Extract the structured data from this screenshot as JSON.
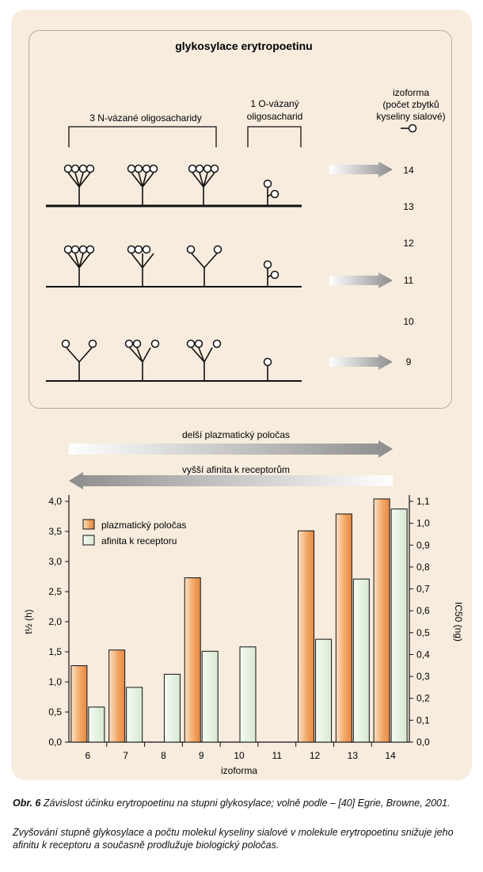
{
  "figure": {
    "title": "glykosylace erytropoetinu",
    "n_label": "3 N-vázané oligosacharidy",
    "o_label_line1": "1 O-vázaný",
    "o_label_line2": "oligosacharid",
    "iso_header_line1": "izoforma",
    "iso_header_line2": "(počet zbytků",
    "iso_header_line3": "kyseliny sialové)",
    "isoform_numbers": [
      "14",
      "13",
      "12",
      "11",
      "10",
      "9"
    ],
    "arrow_half_life": "delší plazmatický poločas",
    "arrow_affinity": "vyšší afinita k receptorům"
  },
  "chart_data": {
    "type": "bar",
    "categories": [
      "6",
      "7",
      "8",
      "9",
      "10",
      "11",
      "12",
      "13",
      "14"
    ],
    "xlabel": "izoforma",
    "ylabel_left": "t½ (h)",
    "ylabel_right": "IC50 (ng)",
    "ylim_left": [
      0,
      4.0
    ],
    "ylim_right": [
      0,
      1.1
    ],
    "left_ticks": [
      "0,0",
      "0,5",
      "1,0",
      "1,5",
      "2,0",
      "2,5",
      "3,0",
      "3,5",
      "4,0"
    ],
    "right_ticks": [
      "0,0",
      "0,1",
      "0,2",
      "0,3",
      "0,4",
      "0,5",
      "0,6",
      "0,7",
      "0,8",
      "0,9",
      "1,0",
      "1,1"
    ],
    "legend_position": "top-left",
    "series": [
      {
        "name": "plazmatický poločas",
        "axis": "left",
        "color": "#f2a866",
        "values": [
          1.27,
          1.53,
          null,
          2.73,
          null,
          null,
          3.51,
          3.79,
          4.04
        ]
      },
      {
        "name": "afinita k receptoru",
        "axis": "right",
        "color": "#e6f2e2",
        "values": [
          0.16,
          0.25,
          0.31,
          0.415,
          0.435,
          null,
          0.47,
          0.745,
          1.065
        ]
      }
    ]
  },
  "caption": {
    "label": "Obr. 6",
    "line1_rest": " Závislost účinku erytropoetinu na stupni glykosylace; volně podle – [40] Egrie, Browne, 2001.",
    "line2": "Zvyšování stupně glykosylace a počtu molekul kyseliny sialové v molekule erytropoetinu snižuje jeho afinitu k receptoru a současně prodlužuje biologický poločas."
  }
}
